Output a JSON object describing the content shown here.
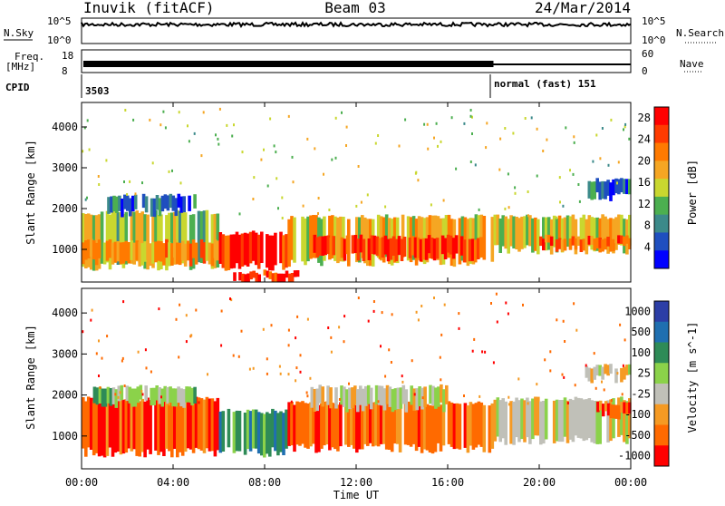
{
  "header": {
    "station": "Inuvik (fitACF)",
    "beam": "Beam 03",
    "date": "24/Mar/2014"
  },
  "top_panels": {
    "nsky_label": "N.Sky",
    "nsearch_label": "N.Search",
    "noise_ticks": [
      "10^5",
      "10^0"
    ],
    "noise_ticks_right": [
      "10^5",
      "10^0"
    ],
    "freq_label_line1": "Freq.",
    "freq_label_line2": "[MHz]",
    "freq_ticks": [
      "18",
      "8"
    ],
    "nave_label": "Nave",
    "nave_ticks": [
      "60",
      "0"
    ],
    "cpid_label": "CPID",
    "cpid_values": [
      {
        "text": "3503",
        "start_hour": 0
      },
      {
        "text": "normal (fast) 151",
        "start_hour": 18
      }
    ]
  },
  "colors": {
    "power_scale": [
      "#0000ff",
      "#1f4fbf",
      "#3c8a8a",
      "#4caf50",
      "#c9d72f",
      "#f5a623",
      "#ff7a00",
      "#ff3b00",
      "#ff0000"
    ],
    "velocity_scale": [
      "#ff0000",
      "#ff6a00",
      "#f59a23",
      "#c0c0b8",
      "#8bd24a",
      "#2e8b57",
      "#1f6fb0",
      "#2c3ea6"
    ]
  },
  "chart_data": [
    {
      "type": "heatmap",
      "quantity": "Power",
      "ylabel": "Slant Range [km]",
      "xlabel": "Time UT",
      "x_ticks": [
        "00:00",
        "04:00",
        "08:00",
        "12:00",
        "16:00",
        "20:00",
        "00:00"
      ],
      "x_hours": [
        0,
        4,
        8,
        12,
        16,
        20,
        24
      ],
      "y_ticks": [
        1000,
        2000,
        3000,
        4000
      ],
      "ylim": [
        200,
        4600
      ],
      "xlim": [
        0,
        24
      ],
      "colorbar_label": "Power [dB]",
      "colorbar_ticks": [
        4,
        8,
        12,
        16,
        20,
        24,
        28
      ],
      "colorbar_range": [
        0,
        30
      ],
      "bands": [
        {
          "t0": 0,
          "t1": 6,
          "r0": 600,
          "r1": 1900,
          "v": 14
        },
        {
          "t0": 0,
          "t1": 6,
          "r0": 700,
          "r1": 1200,
          "v": 20
        },
        {
          "t0": 1,
          "t1": 5,
          "r0": 1900,
          "r1": 2300,
          "v": 6
        },
        {
          "t0": 6,
          "t1": 9,
          "r0": 600,
          "r1": 1400,
          "v": 28
        },
        {
          "t0": 6.5,
          "t1": 9.5,
          "r0": 250,
          "r1": 450,
          "v": 28
        },
        {
          "t0": 9,
          "t1": 18,
          "r0": 700,
          "r1": 1800,
          "v": 18
        },
        {
          "t0": 10,
          "t1": 17.5,
          "r0": 800,
          "r1": 1300,
          "v": 27
        },
        {
          "t0": 18,
          "t1": 24,
          "r0": 1000,
          "r1": 1800,
          "v": 16
        },
        {
          "t0": 20,
          "t1": 24,
          "r0": 1050,
          "r1": 1300,
          "v": 24
        },
        {
          "t0": 22,
          "t1": 24,
          "r0": 2300,
          "r1": 2700,
          "v": 6
        }
      ]
    },
    {
      "type": "heatmap",
      "quantity": "Velocity",
      "ylabel": "Slant Range [km]",
      "xlabel": "Time UT",
      "x_ticks": [
        "00:00",
        "04:00",
        "08:00",
        "12:00",
        "16:00",
        "20:00",
        "00:00"
      ],
      "x_hours": [
        0,
        4,
        8,
        12,
        16,
        20,
        24
      ],
      "y_ticks": [
        1000,
        2000,
        3000,
        4000
      ],
      "ylim": [
        200,
        4600
      ],
      "xlim": [
        0,
        24
      ],
      "colorbar_label": "Velocity [m s^-1]",
      "colorbar_ticks": [
        "1000",
        "500",
        "100",
        "25",
        "-25",
        "-100",
        "-500",
        "-1000"
      ],
      "bands": [
        {
          "t0": 0,
          "t1": 6,
          "r0": 600,
          "r1": 1900,
          "v": -100
        },
        {
          "t0": 0.5,
          "t1": 5,
          "r0": 1800,
          "r1": 2200,
          "v": 100
        },
        {
          "t0": 6,
          "t1": 9,
          "r0": 600,
          "r1": 1600,
          "v": 500
        },
        {
          "t0": 9,
          "t1": 18,
          "r0": 700,
          "r1": 1800,
          "v": -100
        },
        {
          "t0": 10,
          "t1": 16,
          "r0": 1700,
          "r1": 2200,
          "v": 0
        },
        {
          "t0": 18,
          "t1": 24,
          "r0": 900,
          "r1": 1900,
          "v": 0
        },
        {
          "t0": 22.5,
          "t1": 24,
          "r0": 1500,
          "r1": 1800,
          "v": -200
        },
        {
          "t0": 22,
          "t1": 24,
          "r0": 2400,
          "r1": 2700,
          "v": 0
        }
      ]
    }
  ]
}
